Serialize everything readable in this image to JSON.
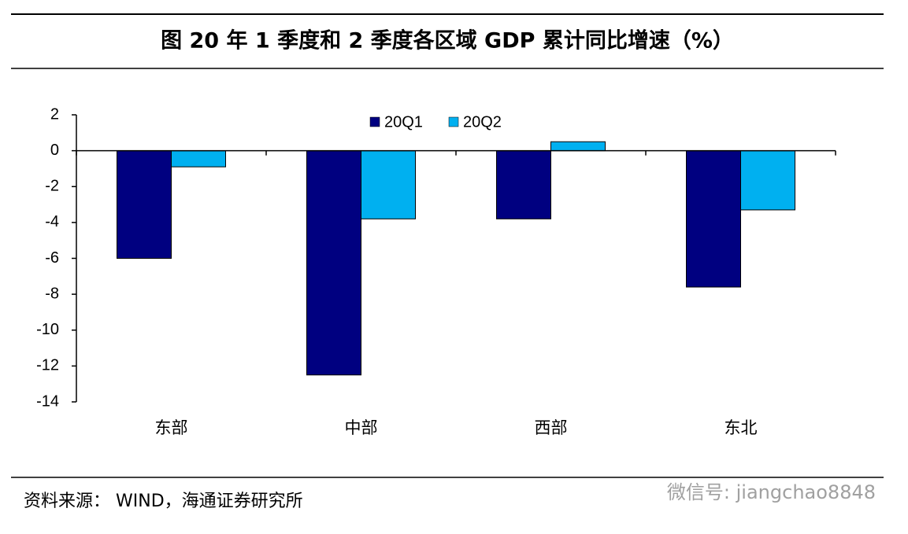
{
  "chart_data": {
    "type": "bar",
    "title": "图 20 年 1 季度和 2 季度各区域 GDP 累计同比增速（%）",
    "categories": [
      "东部",
      "中部",
      "西部",
      "东北"
    ],
    "series": [
      {
        "name": "20Q1",
        "color": "#000080",
        "values": [
          -6.0,
          -12.5,
          -3.8,
          -7.6
        ]
      },
      {
        "name": "20Q2",
        "color": "#00b0f0",
        "values": [
          -0.9,
          -3.8,
          0.5,
          -3.3
        ]
      }
    ],
    "ylim": [
      -14,
      2
    ],
    "yticks": [
      -14,
      -12,
      -10,
      -8,
      -6,
      -4,
      -2,
      0,
      2
    ],
    "legend": "top",
    "source": "资料来源： WIND，海通证券研究所",
    "watermark": "微信号: jiangchao8848"
  }
}
